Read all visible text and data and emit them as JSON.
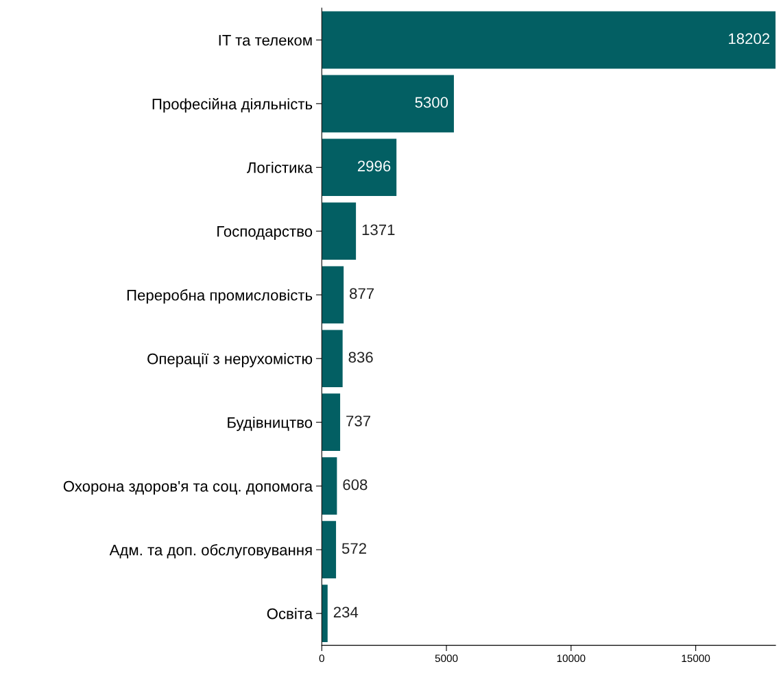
{
  "chart_data": {
    "type": "bar",
    "orientation": "horizontal",
    "categories": [
      "IT та телеком",
      "Професійна діяльність",
      "Логістика",
      "Господарство",
      "Переробна промисловість",
      "Операції з нерухомістю",
      "Будівництво",
      "Охорона здоров'я та соц. допомога",
      "Адм. та доп. обслуговування",
      "Освіта"
    ],
    "values": [
      18202,
      5300,
      2996,
      1371,
      877,
      836,
      737,
      608,
      572,
      234
    ],
    "color": "#035f63",
    "xlim": [
      0,
      18202
    ],
    "xticks": [
      0,
      5000,
      10000,
      15000
    ],
    "data_labels": true,
    "grid": false,
    "legend": false
  }
}
